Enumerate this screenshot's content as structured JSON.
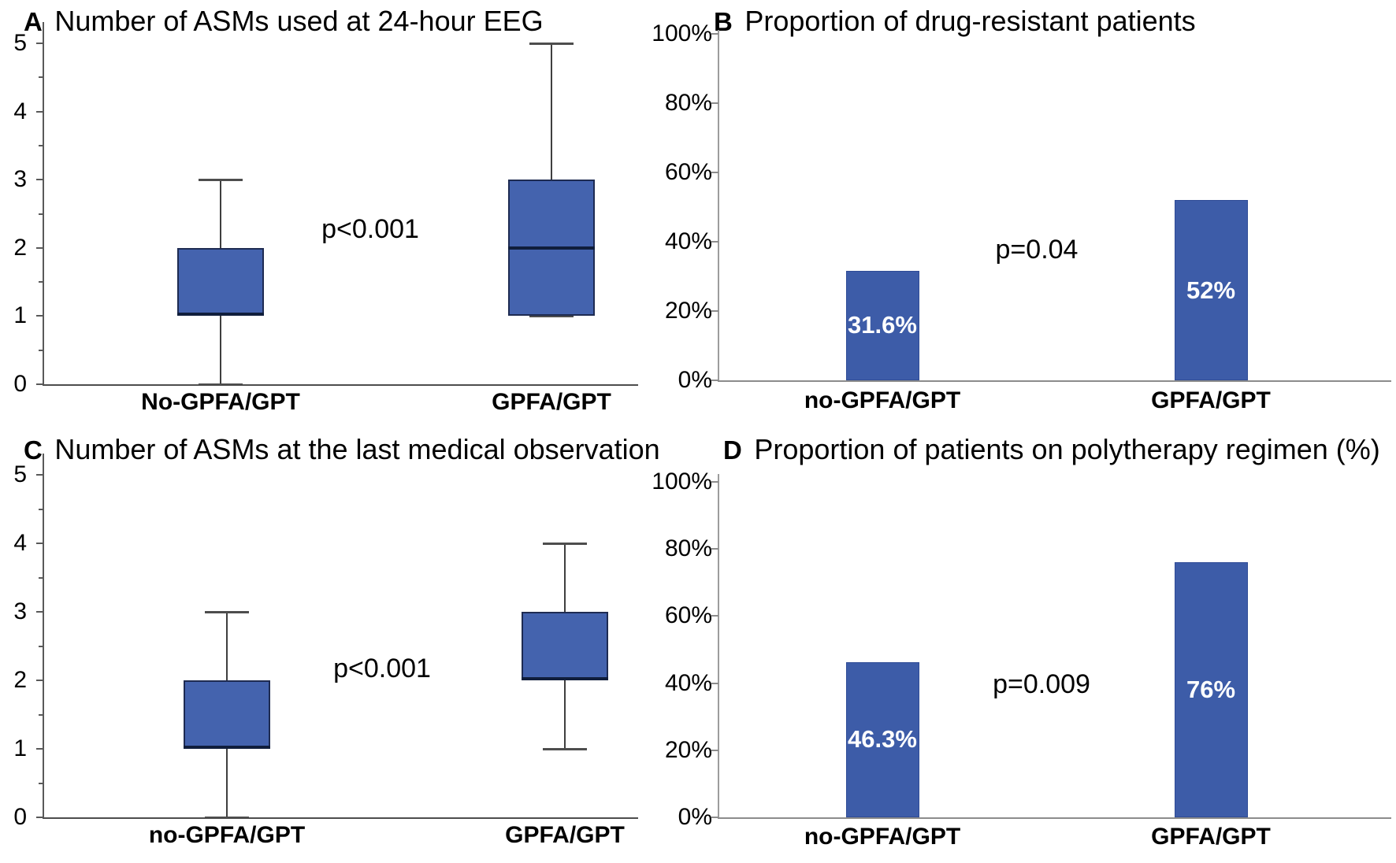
{
  "figure": {
    "background": "#ffffff",
    "bar_fill": "#3D5CA8",
    "bar_border": "#2F4B96",
    "box_fill": "#4463AE",
    "box_border": "#1E2B52",
    "median_color": "#101E3C",
    "whisker_color": "#3F3F3F",
    "cap_color": "#4D4D4D",
    "box_axis_color": "#595959",
    "bar_axis_color": "#8C8C8C",
    "text_color": "#000000",
    "bar_label_color": "#ffffff"
  },
  "chart_data": [
    {
      "id": "A",
      "type": "boxplot",
      "panel_letter": "A",
      "title": "Number of ASMs used at 24-hour EEG",
      "p_value": "p<0.001",
      "categories": [
        "No-GPFA/GPT",
        "GPFA/GPT"
      ],
      "ylim": [
        0,
        5
      ],
      "yticks": [
        0,
        1,
        2,
        3,
        4,
        5
      ],
      "grid": false,
      "boxes": [
        {
          "category": "No-GPFA/GPT",
          "min": 0,
          "q1": 1,
          "median": 1,
          "q3": 2,
          "max": 3
        },
        {
          "category": "GPFA/GPT",
          "min": 1,
          "q1": 1,
          "median": 2,
          "q3": 3,
          "max": 5
        }
      ]
    },
    {
      "id": "B",
      "type": "bar",
      "panel_letter": "B",
      "title": "Proportion of drug-resistant patients",
      "p_value": "p=0.04",
      "categories": [
        "no-GPFA/GPT",
        "GPFA/GPT"
      ],
      "ylim": [
        0,
        100
      ],
      "yticks": [
        "0%",
        "20%",
        "40%",
        "60%",
        "80%",
        "100%"
      ],
      "grid": false,
      "values": [
        31.6,
        52
      ],
      "bar_labels": [
        "31.6%",
        "52%"
      ]
    },
    {
      "id": "C",
      "type": "boxplot",
      "panel_letter": "C",
      "title": "Number of ASMs at the last medical observation",
      "p_value": "p<0.001",
      "categories": [
        "no-GPFA/GPT",
        "GPFA/GPT"
      ],
      "ylim": [
        0,
        5
      ],
      "yticks": [
        0,
        1,
        2,
        3,
        4,
        5
      ],
      "grid": false,
      "boxes": [
        {
          "category": "no-GPFA/GPT",
          "min": 0,
          "q1": 1,
          "median": 1,
          "q3": 2,
          "max": 3
        },
        {
          "category": "GPFA/GPT",
          "min": 1,
          "q1": 2,
          "median": 2,
          "q3": 3,
          "max": 4
        }
      ]
    },
    {
      "id": "D",
      "type": "bar",
      "panel_letter": "D",
      "title": "Proportion of patients on polytherapy regimen (%)",
      "p_value": "p=0.009",
      "categories": [
        "no-GPFA/GPT",
        "GPFA/GPT"
      ],
      "ylim": [
        0,
        100
      ],
      "yticks": [
        "0%",
        "20%",
        "40%",
        "60%",
        "80%",
        "100%"
      ],
      "grid": false,
      "values": [
        46.3,
        76
      ],
      "bar_labels": [
        "46.3%",
        "76%"
      ]
    }
  ]
}
